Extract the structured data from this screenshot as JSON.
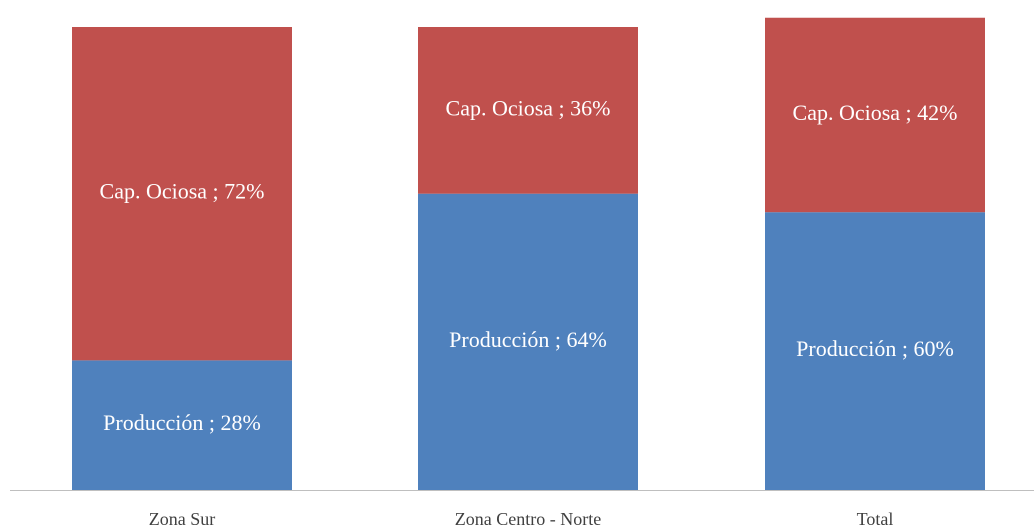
{
  "chart_data": {
    "type": "stacked_bar",
    "categories": [
      "Zona Sur",
      "Zona Centro - Norte",
      "Total"
    ],
    "series": [
      {
        "name": "Producción",
        "color": "#4f81bd",
        "values": [
          28,
          64,
          60
        ],
        "value_labels": [
          "Producción ; 28%",
          "Producción ; 64%",
          "Producción ; 60%"
        ]
      },
      {
        "name": "Cap. Ociosa",
        "color": "#c0504d",
        "values": [
          72,
          36,
          42
        ],
        "value_labels": [
          "Cap. Ociosa ; 72%",
          "Cap. Ociosa ; 36%",
          "Cap. Ociosa ; 42%"
        ]
      }
    ]
  }
}
